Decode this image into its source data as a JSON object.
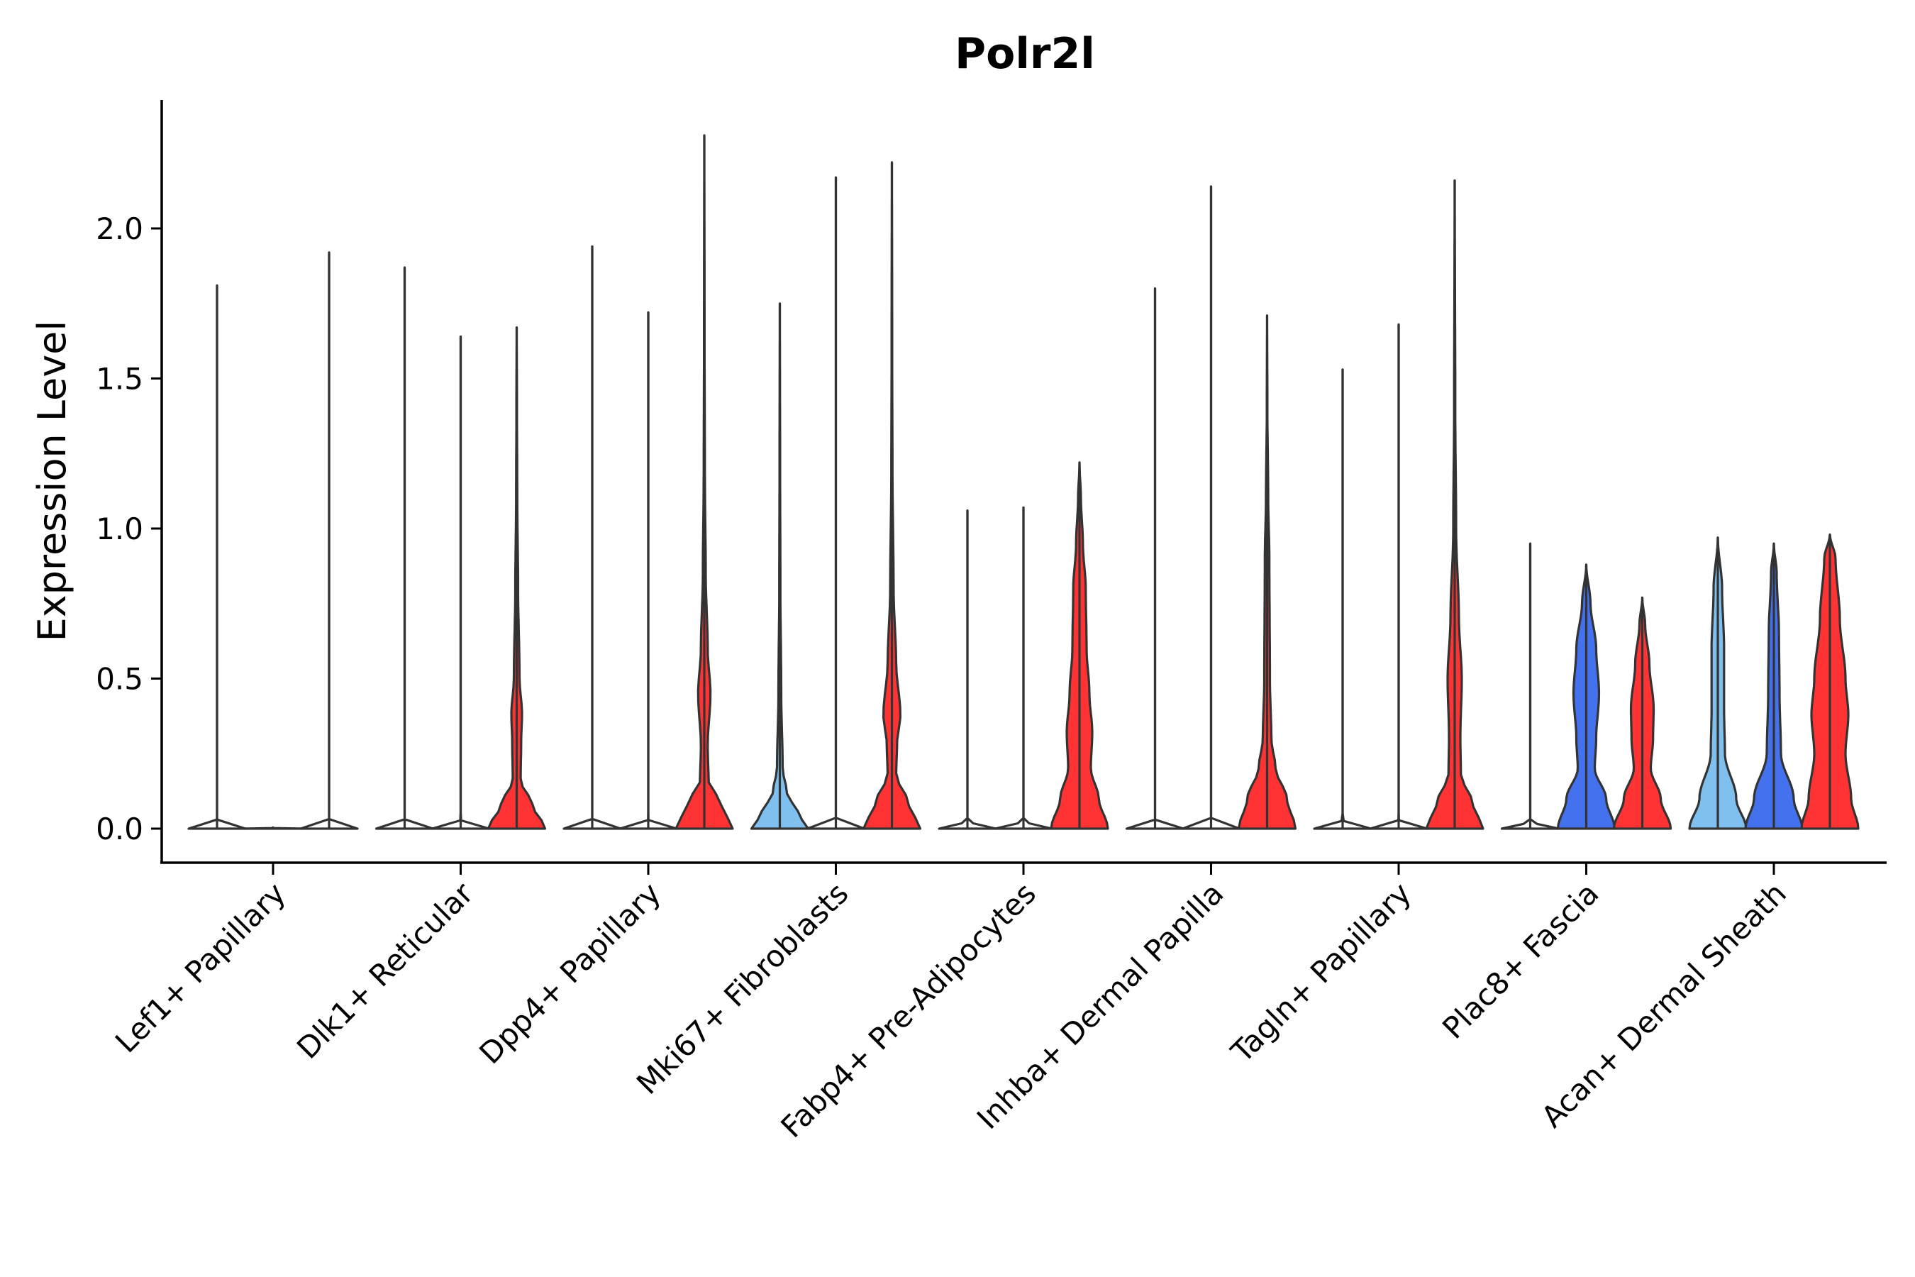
{
  "chart_data": {
    "type": "violin",
    "title": "Polr2l",
    "xlabel": "",
    "ylabel": "Expression Level",
    "ylim": [
      -0.12,
      2.45
    ],
    "yticks": [
      "0.0",
      "0.5",
      "1.0",
      "1.5",
      "2.0"
    ],
    "yticks_values": [
      0,
      0.5,
      1.0,
      1.5,
      2.0
    ],
    "grid": false,
    "legend": "none",
    "categories": [
      "Lef1+ Papillary",
      "Dlk1+ Reticular",
      "Dpp4+ Papillary",
      "Mki67+ Fibroblasts",
      "Fabp4+ Pre-Adipocytes",
      "Inhba+ Dermal Papilla",
      "Tagln+ Papillary",
      "Plac8+ Fascia",
      "Acan+ Dermal Sheath"
    ],
    "colors": {
      "light_blue": "#7fc0ee",
      "blue": "#4472ee",
      "red": "#ff3333",
      "white": "#ffffff"
    },
    "violins": [
      {
        "category": 0,
        "pos": -1,
        "color": "white",
        "max": 1.81,
        "profile": [
          [
            0,
            1.0
          ],
          [
            0.01,
            0.3
          ],
          [
            0.03,
            0.0
          ]
        ]
      },
      {
        "category": 0,
        "pos": 0,
        "color": "white",
        "max": 0.0,
        "profile": [
          [
            0,
            1.0
          ],
          [
            0.002,
            0.0
          ]
        ]
      },
      {
        "category": 0,
        "pos": 1,
        "color": "white",
        "max": 1.92,
        "profile": [
          [
            0,
            1.0
          ],
          [
            0.01,
            0.3
          ],
          [
            0.03,
            0.0
          ]
        ]
      },
      {
        "category": 1,
        "pos": -1,
        "color": "white",
        "max": 1.87,
        "profile": [
          [
            0,
            1.0
          ],
          [
            0.01,
            0.3
          ],
          [
            0.03,
            0.0
          ]
        ]
      },
      {
        "category": 1,
        "pos": 0,
        "color": "white",
        "max": 1.64,
        "profile": [
          [
            0,
            1.0
          ],
          [
            0.01,
            0.3
          ],
          [
            0.03,
            0.0
          ]
        ]
      },
      {
        "category": 1,
        "pos": 1,
        "color": "red",
        "max": 1.67,
        "profile": [
          [
            0,
            1.0
          ],
          [
            0.08,
            0.55
          ],
          [
            0.16,
            0.14
          ],
          [
            0.3,
            0.16
          ],
          [
            0.38,
            0.19
          ],
          [
            0.5,
            0.1
          ],
          [
            0.8,
            0.05
          ],
          [
            1.1,
            0.02
          ],
          [
            1.4,
            0.01
          ],
          [
            1.67,
            0.0
          ]
        ]
      },
      {
        "category": 2,
        "pos": -1,
        "color": "white",
        "max": 1.94,
        "profile": [
          [
            0,
            1.0
          ],
          [
            0.01,
            0.3
          ],
          [
            0.03,
            0.0
          ]
        ]
      },
      {
        "category": 2,
        "pos": 0,
        "color": "white",
        "max": 1.72,
        "profile": [
          [
            0,
            1.0
          ],
          [
            0.01,
            0.3
          ],
          [
            0.03,
            0.0
          ]
        ]
      },
      {
        "category": 2,
        "pos": 1,
        "color": "red",
        "max": 2.31,
        "profile": [
          [
            0,
            1.0
          ],
          [
            0.08,
            0.6
          ],
          [
            0.16,
            0.15
          ],
          [
            0.28,
            0.12
          ],
          [
            0.45,
            0.22
          ],
          [
            0.6,
            0.12
          ],
          [
            0.85,
            0.05
          ],
          [
            1.2,
            0.02
          ],
          [
            1.6,
            0.01
          ],
          [
            2.31,
            0.0
          ]
        ]
      },
      {
        "category": 3,
        "pos": -1,
        "color": "light_blue",
        "max": 1.75,
        "profile": [
          [
            0,
            1.0
          ],
          [
            0.05,
            0.65
          ],
          [
            0.12,
            0.25
          ],
          [
            0.2,
            0.1
          ],
          [
            0.45,
            0.05
          ],
          [
            0.8,
            0.02
          ],
          [
            1.2,
            0.01
          ],
          [
            1.75,
            0.0
          ]
        ]
      },
      {
        "category": 3,
        "pos": 0,
        "color": "white",
        "max": 2.17,
        "profile": [
          [
            0,
            1.0
          ],
          [
            0.01,
            0.3
          ],
          [
            0.03,
            0.0
          ]
        ]
      },
      {
        "category": 3,
        "pos": 1,
        "color": "red",
        "max": 2.22,
        "profile": [
          [
            0,
            1.0
          ],
          [
            0.08,
            0.6
          ],
          [
            0.18,
            0.15
          ],
          [
            0.28,
            0.18
          ],
          [
            0.38,
            0.3
          ],
          [
            0.55,
            0.15
          ],
          [
            0.8,
            0.06
          ],
          [
            1.2,
            0.02
          ],
          [
            1.6,
            0.01
          ],
          [
            2.22,
            0.0
          ]
        ]
      },
      {
        "category": 4,
        "pos": -1,
        "color": "white",
        "max": 1.06,
        "profile": [
          [
            0,
            1.0
          ],
          [
            0.01,
            0.3
          ],
          [
            0.03,
            0.0
          ]
        ]
      },
      {
        "category": 4,
        "pos": 0,
        "color": "white",
        "max": 1.07,
        "profile": [
          [
            0,
            1.0
          ],
          [
            0.01,
            0.3
          ],
          [
            0.03,
            0.0
          ]
        ]
      },
      {
        "category": 4,
        "pos": 1,
        "color": "red",
        "max": 1.22,
        "profile": [
          [
            0,
            1.0
          ],
          [
            0.1,
            0.68
          ],
          [
            0.2,
            0.4
          ],
          [
            0.32,
            0.45
          ],
          [
            0.45,
            0.35
          ],
          [
            0.6,
            0.25
          ],
          [
            0.8,
            0.22
          ],
          [
            0.95,
            0.12
          ],
          [
            1.1,
            0.05
          ],
          [
            1.22,
            0.0
          ]
        ]
      },
      {
        "category": 5,
        "pos": -1,
        "color": "white",
        "max": 1.8,
        "profile": [
          [
            0,
            1.0
          ],
          [
            0.01,
            0.3
          ],
          [
            0.03,
            0.0
          ]
        ]
      },
      {
        "category": 5,
        "pos": 0,
        "color": "white",
        "max": 2.14,
        "profile": [
          [
            0,
            1.0
          ],
          [
            0.01,
            0.3
          ],
          [
            0.03,
            0.0
          ]
        ]
      },
      {
        "category": 5,
        "pos": 1,
        "color": "red",
        "max": 1.71,
        "profile": [
          [
            0,
            1.0
          ],
          [
            0.1,
            0.7
          ],
          [
            0.2,
            0.3
          ],
          [
            0.3,
            0.15
          ],
          [
            0.5,
            0.1
          ],
          [
            0.9,
            0.08
          ],
          [
            1.1,
            0.04
          ],
          [
            1.4,
            0.01
          ],
          [
            1.71,
            0.0
          ]
        ]
      },
      {
        "category": 6,
        "pos": -1,
        "color": "white",
        "max": 1.53,
        "profile": [
          [
            0,
            1.0
          ],
          [
            0.01,
            0.3
          ],
          [
            0.03,
            0.0
          ]
        ]
      },
      {
        "category": 6,
        "pos": 0,
        "color": "white",
        "max": 1.68,
        "profile": [
          [
            0,
            1.0
          ],
          [
            0.01,
            0.3
          ],
          [
            0.03,
            0.0
          ]
        ]
      },
      {
        "category": 6,
        "pos": 1,
        "color": "red",
        "max": 2.16,
        "profile": [
          [
            0,
            1.0
          ],
          [
            0.08,
            0.65
          ],
          [
            0.18,
            0.22
          ],
          [
            0.3,
            0.2
          ],
          [
            0.5,
            0.25
          ],
          [
            0.7,
            0.15
          ],
          [
            1.0,
            0.05
          ],
          [
            1.4,
            0.02
          ],
          [
            2.16,
            0.0
          ]
        ]
      },
      {
        "category": 7,
        "pos": -1,
        "color": "white",
        "max": 0.95,
        "profile": [
          [
            0,
            1.0
          ],
          [
            0.01,
            0.3
          ],
          [
            0.03,
            0.0
          ]
        ]
      },
      {
        "category": 7,
        "pos": 0,
        "color": "blue",
        "max": 0.88,
        "profile": [
          [
            0,
            1.0
          ],
          [
            0.1,
            0.7
          ],
          [
            0.2,
            0.3
          ],
          [
            0.3,
            0.35
          ],
          [
            0.45,
            0.45
          ],
          [
            0.6,
            0.35
          ],
          [
            0.75,
            0.15
          ],
          [
            0.88,
            0.0
          ]
        ]
      },
      {
        "category": 7,
        "pos": 1,
        "color": "red",
        "max": 0.77,
        "profile": [
          [
            0,
            1.0
          ],
          [
            0.1,
            0.65
          ],
          [
            0.2,
            0.3
          ],
          [
            0.3,
            0.38
          ],
          [
            0.4,
            0.4
          ],
          [
            0.55,
            0.25
          ],
          [
            0.68,
            0.1
          ],
          [
            0.77,
            0.0
          ]
        ]
      },
      {
        "category": 8,
        "pos": -1,
        "color": "light_blue",
        "max": 0.97,
        "profile": [
          [
            0,
            1.0
          ],
          [
            0.1,
            0.65
          ],
          [
            0.25,
            0.25
          ],
          [
            0.4,
            0.22
          ],
          [
            0.6,
            0.22
          ],
          [
            0.8,
            0.15
          ],
          [
            0.97,
            0.0
          ]
        ]
      },
      {
        "category": 8,
        "pos": 0,
        "color": "blue",
        "max": 0.95,
        "profile": [
          [
            0,
            1.0
          ],
          [
            0.1,
            0.7
          ],
          [
            0.25,
            0.25
          ],
          [
            0.45,
            0.2
          ],
          [
            0.65,
            0.18
          ],
          [
            0.85,
            0.1
          ],
          [
            0.95,
            0.0
          ]
        ]
      },
      {
        "category": 8,
        "pos": 1,
        "color": "red",
        "max": 0.98,
        "profile": [
          [
            0,
            1.0
          ],
          [
            0.1,
            0.75
          ],
          [
            0.25,
            0.55
          ],
          [
            0.38,
            0.65
          ],
          [
            0.5,
            0.55
          ],
          [
            0.7,
            0.35
          ],
          [
            0.9,
            0.2
          ],
          [
            0.98,
            0.0
          ]
        ]
      }
    ]
  }
}
